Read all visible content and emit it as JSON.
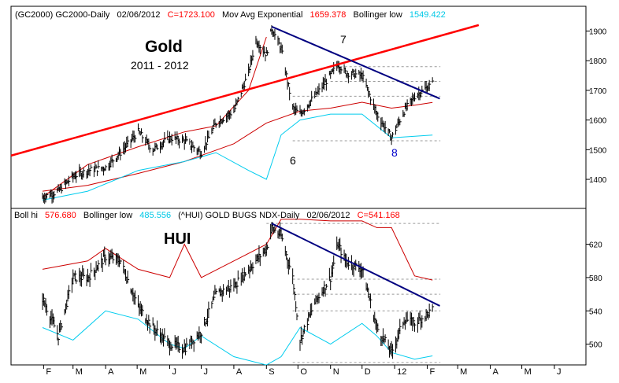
{
  "top_panel": {
    "header": {
      "symbol": "(GC2000) GC2000-Daily",
      "date": "02/06/2012",
      "close": "C=1723.100",
      "ma_label": "Mov Avg Exponential",
      "ma_value": "1659.378",
      "bb_label": "Bollinger low",
      "bb_value": "1549.422"
    },
    "title": "Gold",
    "subtitle": "2011 - 2012",
    "wave_labels": [
      "6",
      "7",
      "8"
    ],
    "y_ticks": [
      "1900",
      "1800",
      "1700",
      "1600",
      "1500",
      "1400"
    ]
  },
  "bottom_panel": {
    "header": {
      "bh_label": "Boll hi",
      "bh_value": "576.680",
      "bl_label": "Bollinger low",
      "bl_value": "485.556",
      "symbol": "(^HUI) GOLD BUGS NDX-Daily",
      "date": "02/06/2012",
      "close": "C=541.168"
    },
    "title": "HUI",
    "y_ticks": [
      "620",
      "580",
      "540",
      "500"
    ]
  },
  "x_ticks": [
    "F",
    "M",
    "A",
    "M",
    "J",
    "J",
    "A",
    "S",
    "O",
    "N",
    "D",
    "12",
    "F",
    "M",
    "A",
    "M",
    "J"
  ],
  "colors": {
    "price_bars": "#000000",
    "trend_red": "#ff0000",
    "trend_blue": "#000080",
    "moving_avg": "#cc0000",
    "bollinger": "#00ccee",
    "header_red": "#ff0000",
    "header_cyan": "#00c8e6",
    "header_blue": "#0000cc",
    "grid_dash": "#999999"
  },
  "chart_data": [
    {
      "type": "line",
      "series": [
        {
          "name": "GC2000",
          "x": [
            "2011-01-31",
            "2011-02-15",
            "2011-03-01",
            "2011-03-15",
            "2011-04-01",
            "2011-04-15",
            "2011-05-02",
            "2011-05-16",
            "2011-06-01",
            "2011-06-15",
            "2011-07-01",
            "2011-07-15",
            "2011-08-01",
            "2011-08-15",
            "2011-08-22",
            "2011-09-01",
            "2011-09-06",
            "2011-09-15",
            "2011-09-26",
            "2011-10-03",
            "2011-10-17",
            "2011-11-01",
            "2011-11-08",
            "2011-11-15",
            "2011-12-01",
            "2011-12-15",
            "2011-12-29",
            "2012-01-10",
            "2012-01-20",
            "2012-02-06"
          ],
          "values": [
            1340,
            1360,
            1410,
            1430,
            1440,
            1490,
            1560,
            1500,
            1540,
            1530,
            1490,
            1590,
            1630,
            1760,
            1870,
            1820,
            1910,
            1840,
            1640,
            1620,
            1680,
            1750,
            1790,
            1760,
            1750,
            1620,
            1540,
            1630,
            1680,
            1723
          ]
        },
        {
          "name": "Mov Avg Exponential",
          "x": [
            "2011-01-31",
            "2011-03-15",
            "2011-05-02",
            "2011-06-15",
            "2011-08-01",
            "2011-09-01",
            "2011-10-03",
            "2011-11-01",
            "2011-12-01",
            "2011-12-29",
            "2012-01-20",
            "2012-02-06"
          ],
          "values": [
            1360,
            1380,
            1420,
            1460,
            1520,
            1590,
            1630,
            1640,
            1660,
            1640,
            1650,
            1659
          ]
        },
        {
          "name": "Bollinger low",
          "x": [
            "2011-01-31",
            "2011-03-15",
            "2011-05-02",
            "2011-06-15",
            "2011-07-15",
            "2011-08-15",
            "2011-09-01",
            "2011-09-15",
            "2011-10-03",
            "2011-11-01",
            "2011-12-01",
            "2011-12-29",
            "2012-02-06"
          ],
          "values": [
            1330,
            1360,
            1430,
            1460,
            1490,
            1430,
            1400,
            1550,
            1600,
            1620,
            1620,
            1540,
            1549
          ]
        },
        {
          "name": "Boll hi",
          "x": [
            "2011-01-31",
            "2011-03-15",
            "2011-05-02",
            "2011-06-15",
            "2011-07-15",
            "2011-08-15",
            "2011-09-01"
          ],
          "values": [
            1340,
            1450,
            1510,
            1560,
            1580,
            1700,
            1880
          ]
        }
      ],
      "ylim": [
        1310,
        1925
      ]
    },
    {
      "type": "line",
      "series": [
        {
          "name": "(^HUI) GOLD BUGS NDX",
          "x": [
            "2011-01-31",
            "2011-02-15",
            "2011-03-01",
            "2011-03-15",
            "2011-04-01",
            "2011-04-15",
            "2011-05-02",
            "2011-05-16",
            "2011-06-01",
            "2011-06-15",
            "2011-07-01",
            "2011-07-15",
            "2011-08-01",
            "2011-08-15",
            "2011-09-01",
            "2011-09-06",
            "2011-09-15",
            "2011-09-26",
            "2011-10-03",
            "2011-10-17",
            "2011-11-01",
            "2011-11-08",
            "2011-11-15",
            "2011-12-01",
            "2011-12-15",
            "2011-12-29",
            "2012-01-10",
            "2012-01-20",
            "2012-02-06"
          ],
          "values": [
            555,
            510,
            580,
            580,
            605,
            600,
            545,
            520,
            500,
            495,
            515,
            560,
            570,
            590,
            615,
            640,
            630,
            580,
            505,
            550,
            580,
            620,
            600,
            590,
            520,
            490,
            530,
            525,
            541
          ]
        },
        {
          "name": "Boll hi",
          "x": [
            "2011-01-31",
            "2011-03-15",
            "2011-04-01",
            "2011-05-02",
            "2011-06-01",
            "2011-06-15",
            "2011-07-01",
            "2011-08-01",
            "2011-09-01",
            "2011-09-15",
            "2011-10-03",
            "2011-11-01",
            "2011-12-01",
            "2011-12-15",
            "2011-12-29",
            "2012-01-20",
            "2012-02-06"
          ],
          "values": [
            590,
            600,
            615,
            590,
            580,
            620,
            580,
            600,
            620,
            650,
            650,
            648,
            648,
            640,
            640,
            582,
            577
          ]
        },
        {
          "name": "Bollinger low",
          "x": [
            "2011-01-31",
            "2011-03-01",
            "2011-04-01",
            "2011-05-02",
            "2011-06-01",
            "2011-06-15",
            "2011-07-01",
            "2011-08-01",
            "2011-09-01",
            "2011-09-15",
            "2011-10-03",
            "2011-11-01",
            "2011-12-01",
            "2011-12-15",
            "2011-12-29",
            "2012-01-20",
            "2012-02-06"
          ],
          "values": [
            520,
            505,
            540,
            530,
            500,
            495,
            510,
            485,
            475,
            485,
            520,
            500,
            525,
            510,
            490,
            482,
            486
          ]
        }
      ],
      "ylim": [
        477,
        647
      ]
    }
  ]
}
